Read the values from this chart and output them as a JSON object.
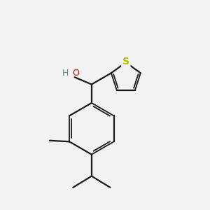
{
  "background_color": "#f2f2f2",
  "bond_color": "#1a1a1a",
  "sulfur_color": "#b8b800",
  "oxygen_color": "#cc0000",
  "hydrogen_color": "#5a8a8a",
  "figsize": [
    3.0,
    3.0
  ],
  "dpi": 100,
  "xlim": [
    0,
    10
  ],
  "ylim": [
    0,
    10
  ]
}
